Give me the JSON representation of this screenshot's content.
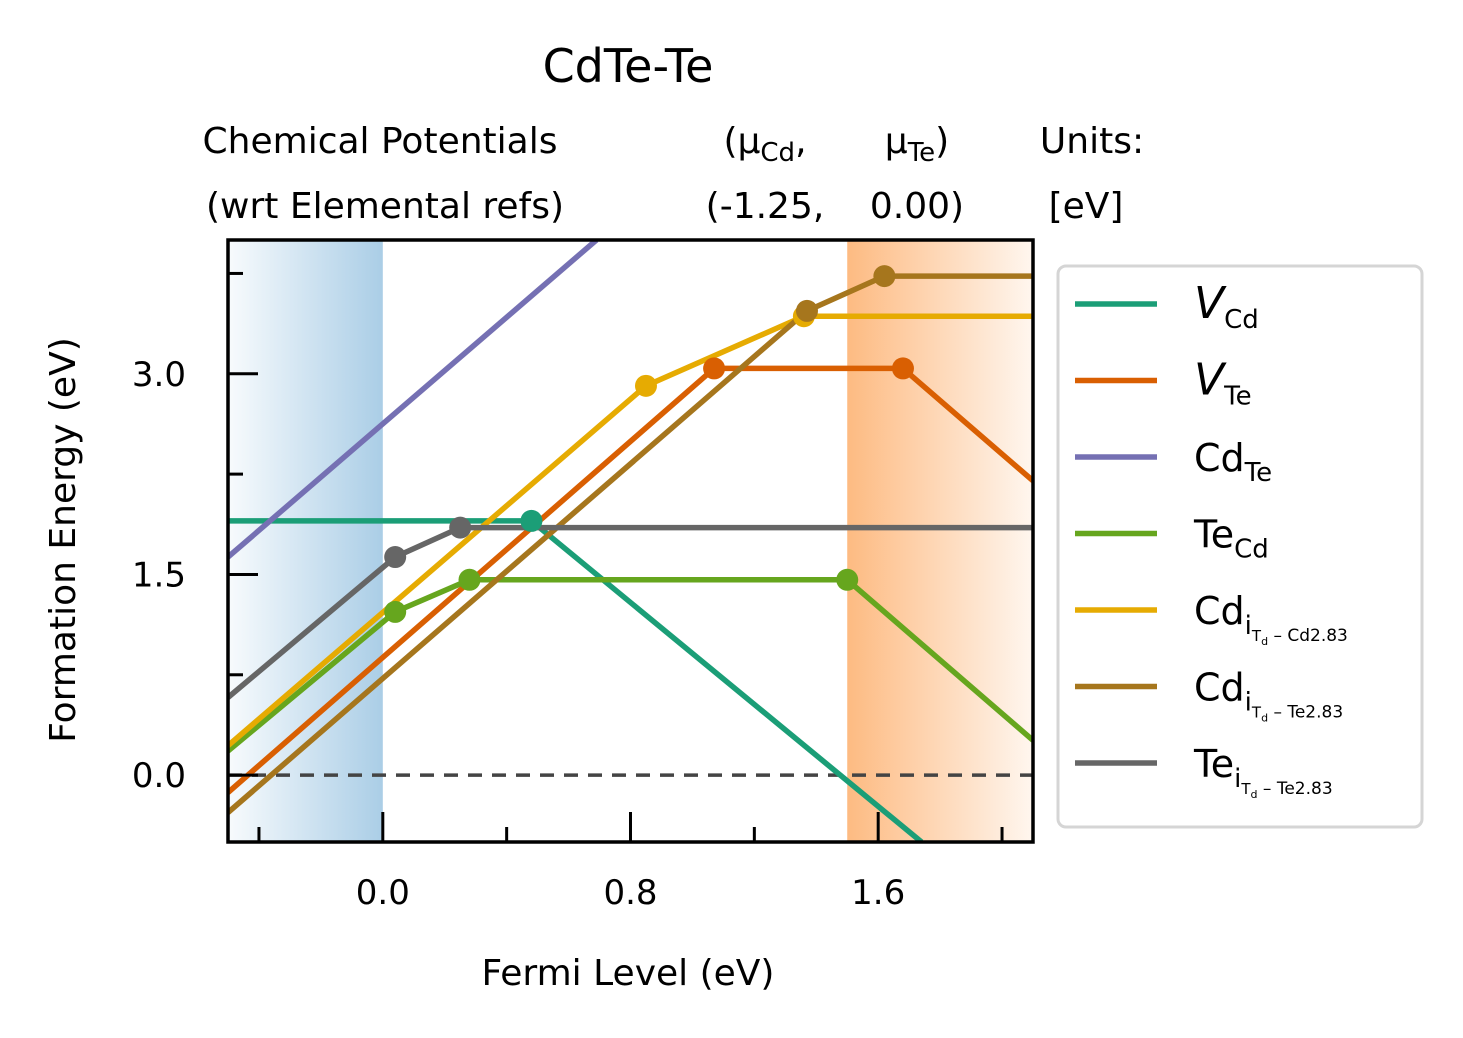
{
  "chart_data": {
    "type": "line",
    "title": "CdTe-Te",
    "xlabel": "Fermi Level (eV)",
    "ylabel": "Formation Energy (eV)",
    "xlim": [
      -0.5,
      2.1
    ],
    "ylim": [
      -0.5,
      4.0
    ],
    "xticks": [
      0.0,
      0.8,
      1.6
    ],
    "xtick_labels": [
      "0.0",
      "0.8",
      "1.6"
    ],
    "yticks": [
      0.0,
      1.5,
      3.0
    ],
    "ytick_labels": [
      "0.0",
      "1.5",
      "3.0"
    ],
    "grid": false,
    "legend_position": "right",
    "header": {
      "col1_line1": "Chemical Potentials",
      "col1_line2": "(wrt Elemental refs)",
      "col2_line1": "(μ",
      "col2_sub1": "Cd",
      "col2_line1_end": ",",
      "col2_line2": "(-1.25,",
      "col3_line1": "μ",
      "col3_sub1": "Te",
      "col3_line1_end": ")",
      "col3_line2": "0.00)",
      "col4_line1": "Units:",
      "col4_line2": "[eV]"
    },
    "shaded_regions": [
      {
        "from": -0.5,
        "to": 0.0,
        "color": "#a6cbe5",
        "fade": "left"
      },
      {
        "from": 1.5,
        "to": 2.1,
        "color": "#fdb77b",
        "fade": "right"
      }
    ],
    "reference_line": {
      "y": 0.0,
      "style": "dashed",
      "color": "#444444"
    },
    "series": [
      {
        "main": "V",
        "sub": "Cd",
        "subsub": "",
        "italic": true,
        "color": "#1b9e77",
        "points": [
          [
            -0.5,
            1.9
          ],
          [
            0.48,
            1.9
          ],
          [
            1.74,
            -0.5
          ]
        ],
        "markers": [
          [
            0.48,
            1.9
          ]
        ]
      },
      {
        "main": "V",
        "sub": "Te",
        "subsub": "",
        "italic": true,
        "color": "#d95f02",
        "points": [
          [
            -0.5,
            -0.13
          ],
          [
            1.07,
            3.04
          ],
          [
            1.68,
            3.04
          ],
          [
            2.1,
            2.2
          ]
        ],
        "markers": [
          [
            1.07,
            3.04
          ],
          [
            1.68,
            3.04
          ]
        ]
      },
      {
        "main": "Cd",
        "sub": "Te",
        "subsub": "",
        "italic": false,
        "color": "#7570b3",
        "points": [
          [
            -0.5,
            1.63
          ],
          [
            0.69,
            4.0
          ]
        ],
        "markers": []
      },
      {
        "main": "Te",
        "sub": "Cd",
        "subsub": "",
        "italic": false,
        "color": "#66a61e",
        "points": [
          [
            -0.5,
            0.18
          ],
          [
            0.04,
            1.22
          ],
          [
            0.28,
            1.46
          ],
          [
            1.5,
            1.46
          ],
          [
            2.1,
            0.26
          ]
        ],
        "markers": [
          [
            0.04,
            1.22
          ],
          [
            0.28,
            1.46
          ],
          [
            1.5,
            1.46
          ]
        ]
      },
      {
        "main": "Cd",
        "sub": "i",
        "subsub": "T",
        "subsubsub": "d",
        "tail": " – Cd2.83",
        "italic": false,
        "color": "#e6ab02",
        "points": [
          [
            -0.5,
            0.22
          ],
          [
            0.85,
            2.91
          ],
          [
            1.36,
            3.43
          ],
          [
            2.1,
            3.43
          ]
        ],
        "markers": [
          [
            0.85,
            2.91
          ],
          [
            1.36,
            3.43
          ]
        ]
      },
      {
        "main": "Cd",
        "sub": "i",
        "subsub": "T",
        "subsubsub": "d",
        "tail": " – Te2.83",
        "italic": false,
        "color": "#a6761d",
        "points": [
          [
            -0.5,
            -0.28
          ],
          [
            1.37,
            3.47
          ],
          [
            1.62,
            3.73
          ],
          [
            2.1,
            3.73
          ]
        ],
        "markers": [
          [
            1.37,
            3.47
          ],
          [
            1.62,
            3.73
          ]
        ]
      },
      {
        "main": "Te",
        "sub": "i",
        "subsub": "T",
        "subsubsub": "d",
        "tail": " – Te2.83",
        "italic": false,
        "color": "#666666",
        "points": [
          [
            -0.5,
            0.58
          ],
          [
            0.04,
            1.63
          ],
          [
            0.25,
            1.85
          ],
          [
            2.1,
            1.85
          ]
        ],
        "markers": [
          [
            0.04,
            1.63
          ],
          [
            0.25,
            1.85
          ]
        ]
      }
    ]
  }
}
